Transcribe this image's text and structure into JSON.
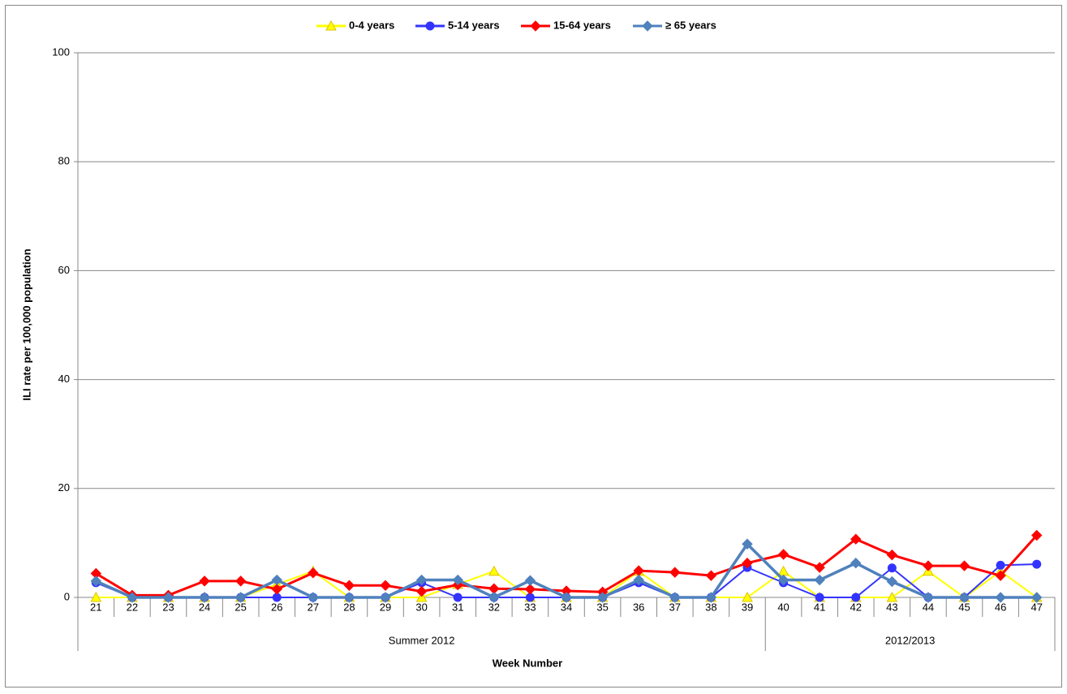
{
  "chart_data": {
    "type": "line",
    "x_title": "Week Number",
    "y_title": "ILI rate per 100,000  population",
    "categories": [
      "21",
      "22",
      "23",
      "24",
      "25",
      "26",
      "27",
      "28",
      "29",
      "30",
      "31",
      "32",
      "33",
      "34",
      "35",
      "36",
      "37",
      "38",
      "39",
      "40",
      "41",
      "42",
      "43",
      "44",
      "45",
      "46",
      "47"
    ],
    "category_groups": [
      {
        "label": "Summer 2012",
        "count": 19
      },
      {
        "label": "2012/2013",
        "count": 8
      }
    ],
    "ylim": [
      0,
      100
    ],
    "yticks": [
      0,
      20,
      40,
      60,
      80,
      100
    ],
    "grid": true,
    "legend": "top",
    "series": [
      {
        "name": "0-4 years",
        "color": "#ffff00",
        "marker": "triangle",
        "values": [
          0,
          0,
          0,
          0,
          0,
          2.4,
          4.8,
          0,
          0,
          0,
          2.4,
          4.8,
          0,
          0,
          0,
          4.8,
          0,
          0,
          0,
          4.8,
          0,
          0,
          0,
          4.8,
          0,
          4.8,
          0
        ]
      },
      {
        "name": "5-14 years",
        "color": "#3333ff",
        "marker": "circle",
        "values": [
          2.7,
          0,
          0,
          0,
          0,
          0,
          0,
          0,
          0,
          2.7,
          0,
          0,
          0,
          0,
          0,
          2.7,
          0,
          0,
          5.5,
          2.7,
          0,
          0,
          5.4,
          0,
          0,
          5.9,
          6.1
        ]
      },
      {
        "name": "15-64 years",
        "color": "#ff0000",
        "marker": "diamond",
        "values": [
          4.4,
          0.4,
          0.4,
          3.0,
          3.0,
          1.5,
          4.5,
          2.2,
          2.2,
          1.1,
          2.3,
          1.6,
          1.5,
          1.2,
          1.0,
          4.9,
          4.6,
          4.0,
          6.3,
          7.9,
          5.5,
          10.7,
          7.8,
          5.8,
          5.8,
          4.0,
          11.4
        ]
      },
      {
        "name": "≥ 65 years",
        "color": "#4f81bd",
        "marker": "diamond",
        "values": [
          3.0,
          0,
          0,
          0,
          0,
          3.2,
          0,
          0,
          0,
          3.2,
          3.2,
          0,
          3.1,
          0,
          0,
          3.2,
          0,
          0,
          9.8,
          3.2,
          3.2,
          6.3,
          2.9,
          0,
          0,
          0,
          0
        ]
      }
    ]
  }
}
